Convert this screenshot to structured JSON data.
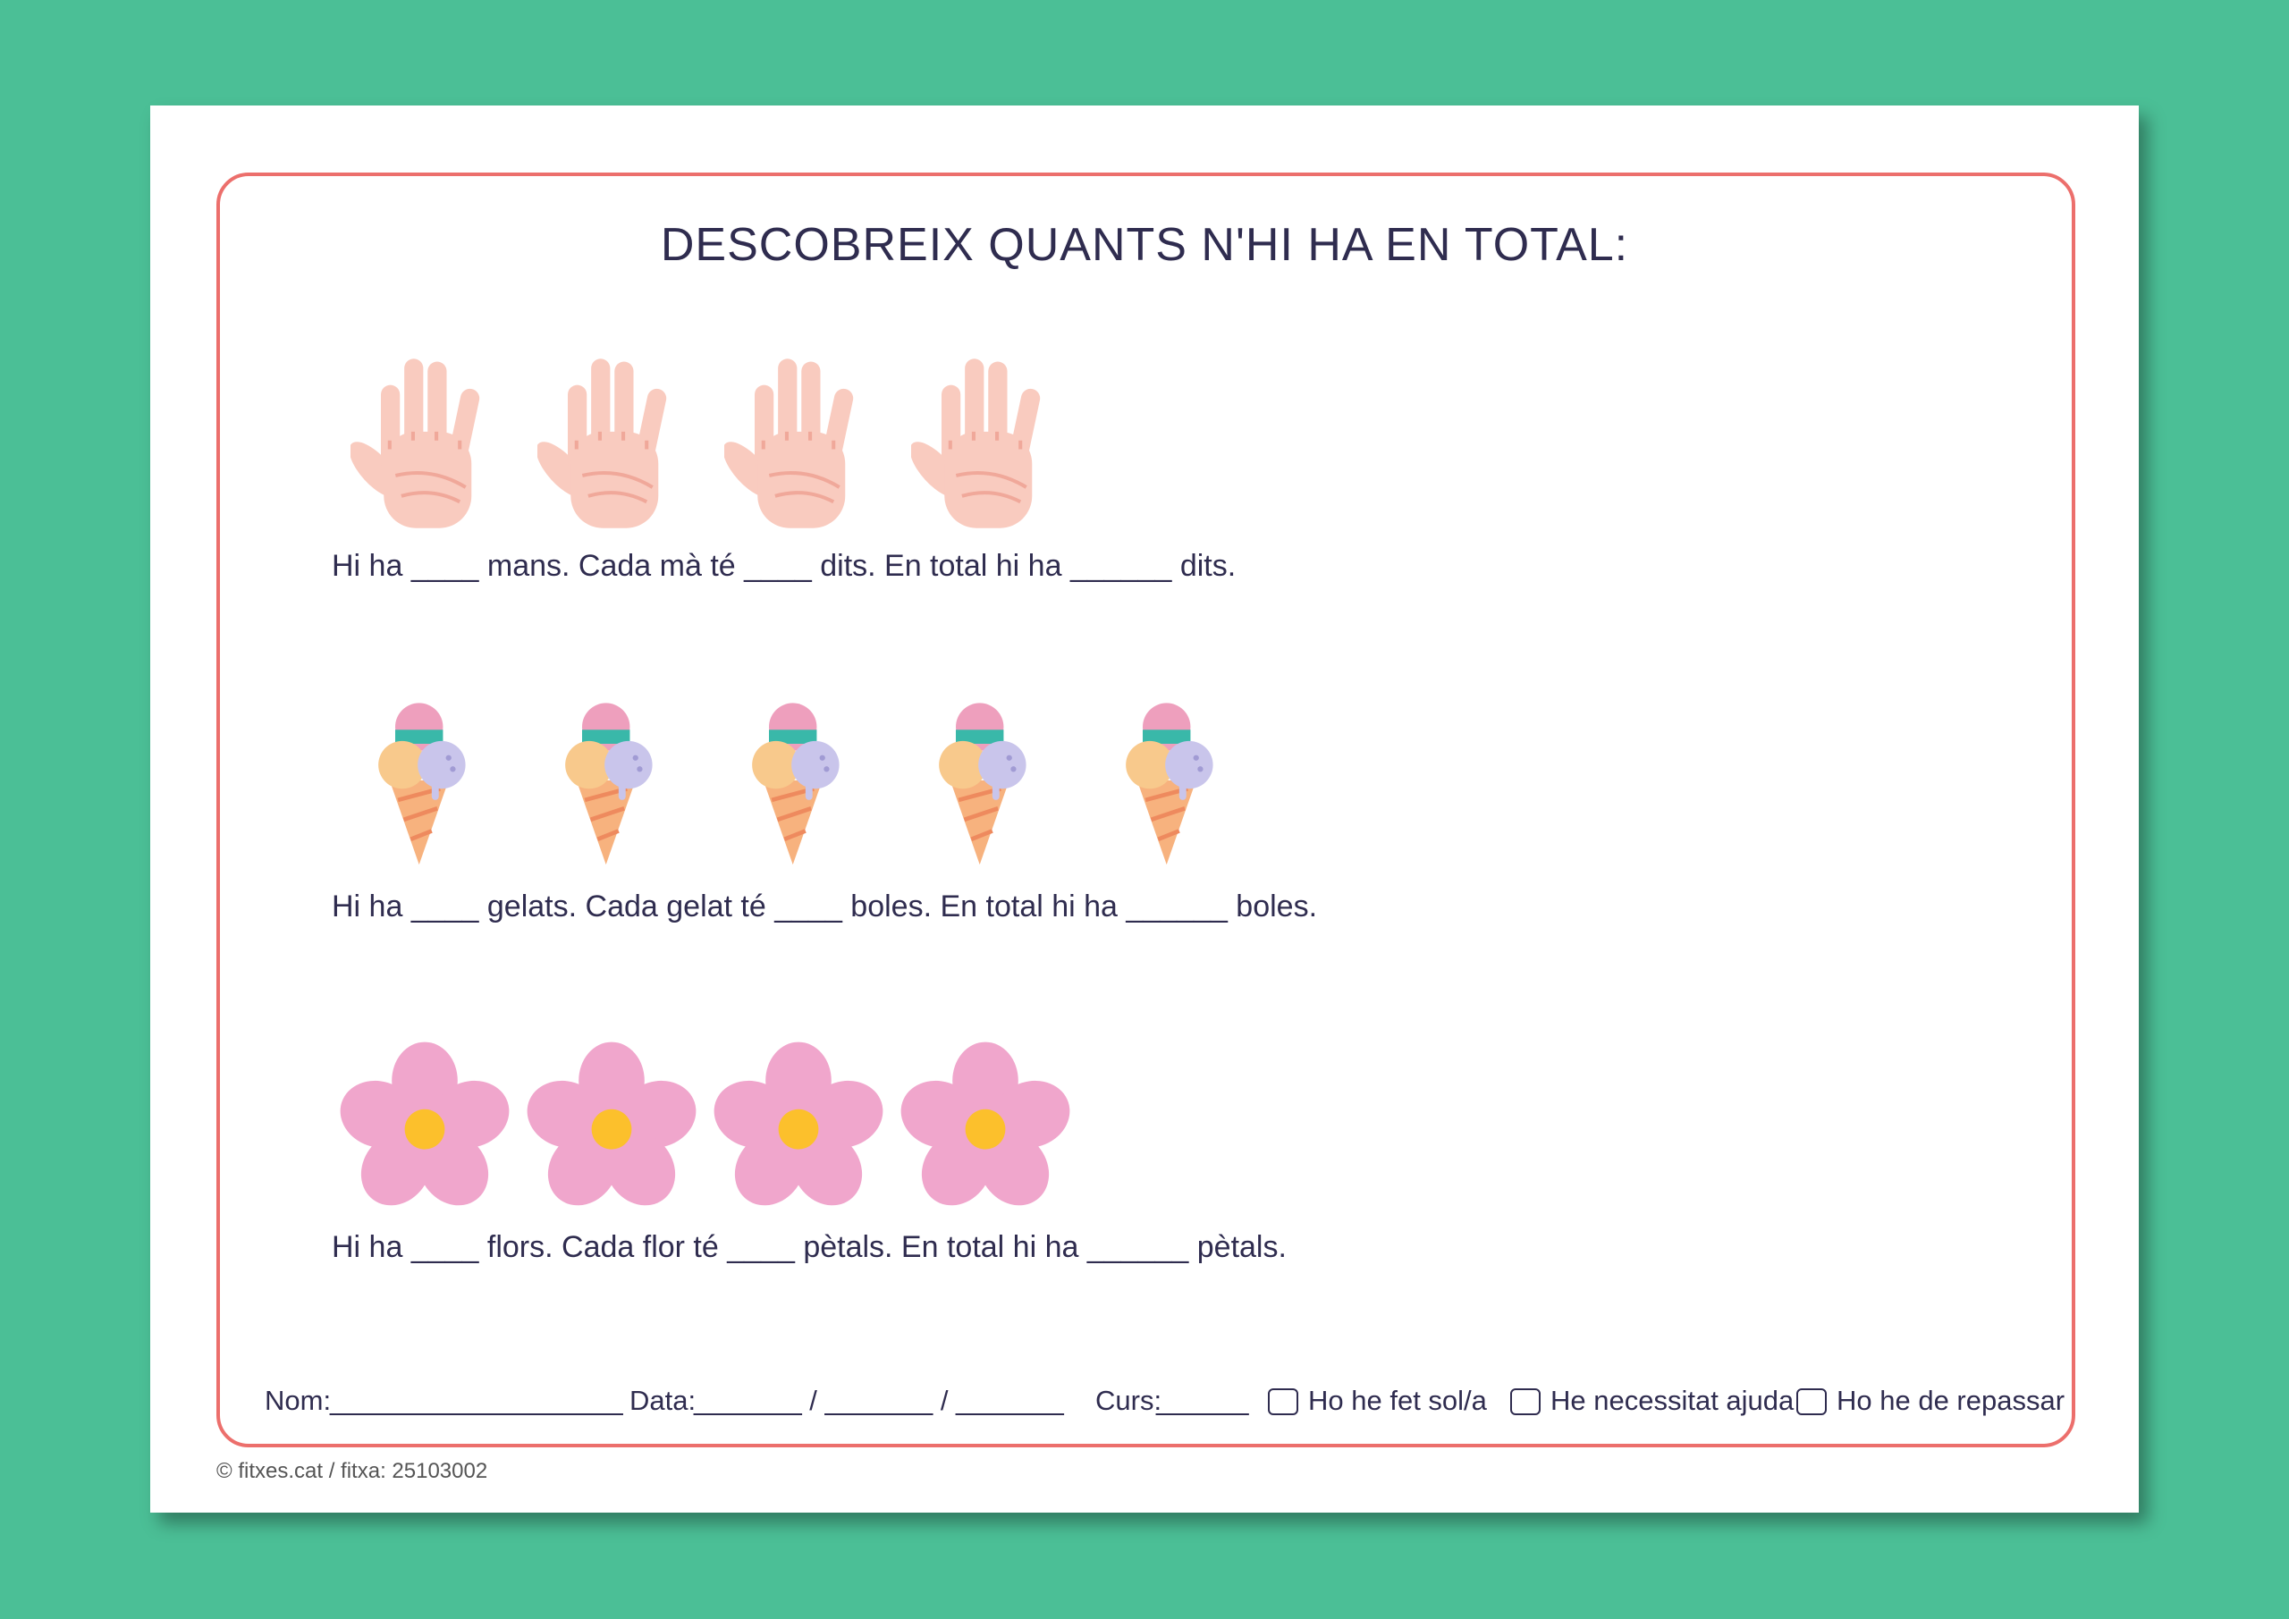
{
  "header": {
    "title": "DESCOBREIX QUANTS N'HI HA EN TOTAL:"
  },
  "rows": [
    {
      "sentence": "Hi ha ____ mans. Cada mà té ____ dits. En total hi ha ______ dits."
    },
    {
      "sentence": "Hi ha ____ gelats. Cada gelat té ____ boles. En total hi ha ______ boles."
    },
    {
      "sentence": "Hi ha ____ flors. Cada flor té ____ pètals. En total hi ha ______ pètals."
    }
  ],
  "footer": {
    "name_label": "Nom:",
    "name_blank": "___________________",
    "date_label": "Data:",
    "date_blank": "_______ / _______ / _______",
    "course_label": "Curs:",
    "course_blank": "______",
    "checks": [
      "Ho he fet sol/a",
      "He necessitat ajuda",
      "Ho he de repassar"
    ]
  },
  "copyright": "© fitxes.cat / fitxa: 25103002"
}
